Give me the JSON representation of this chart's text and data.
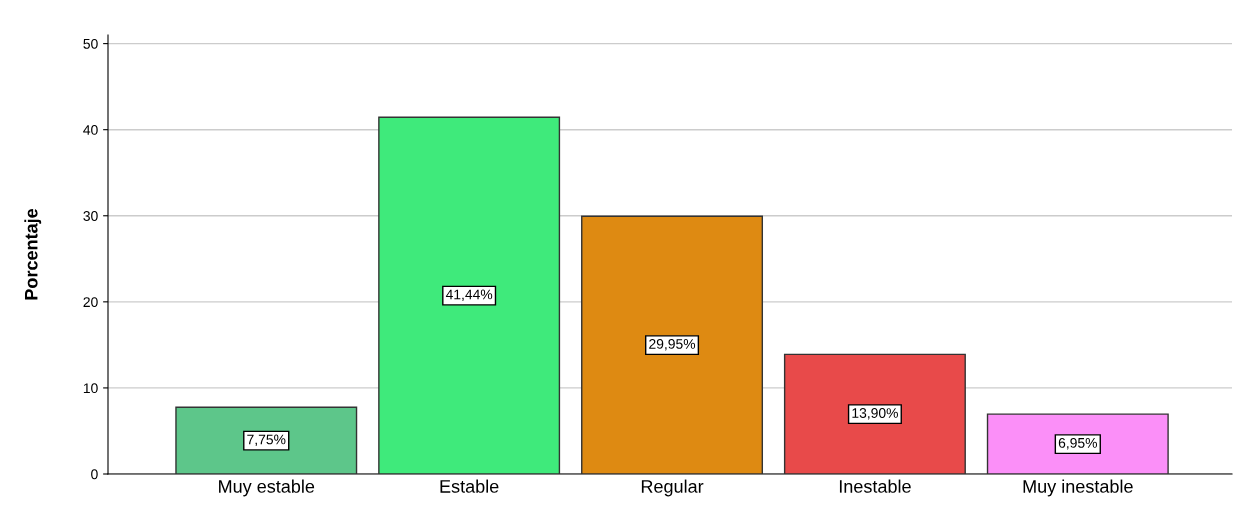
{
  "chart_data": {
    "type": "bar",
    "ylabel": "Porcentaje",
    "categories": [
      "Muy estable",
      "Estable",
      "Regular",
      "Inestable",
      "Muy inestable"
    ],
    "values": [
      7.75,
      41.44,
      29.95,
      13.9,
      6.95
    ],
    "value_labels": [
      "7,75%",
      "41,44%",
      "29,95%",
      "13,90%",
      "6,95%"
    ],
    "colors": [
      "#5dc68a",
      "#3fea7b",
      "#de8a12",
      "#e84a4a",
      "#fb8ff8"
    ],
    "ylim": [
      0,
      51
    ],
    "yticks": [
      0,
      10,
      20,
      30,
      40,
      50
    ],
    "grid": "y"
  }
}
